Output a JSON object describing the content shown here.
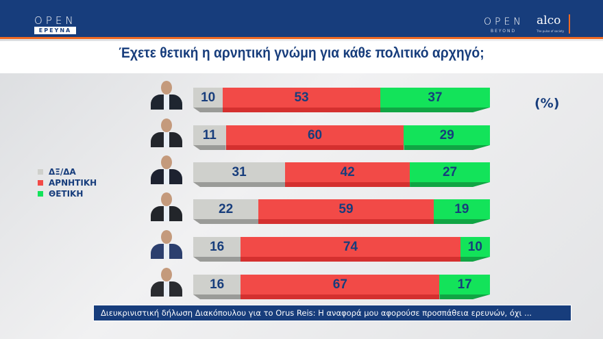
{
  "header": {
    "logo_left": "OPEN",
    "logo_left_sub": "ΕΡΕΥΝΑ",
    "logo_right": "OPEN",
    "logo_right_sub": "BEYOND",
    "partner": "alco",
    "partner_sub": "The pulse of society"
  },
  "chart_data": {
    "type": "bar",
    "orientation": "horizontal",
    "stacked": true,
    "title": "Έχετε θετική η αρνητική γνώμη για κάθε πολιτικό αρχηγό;",
    "unit": "(%)",
    "legend_placement": "left",
    "categories": [
      "leader-1",
      "leader-2",
      "leader-3",
      "leader-4",
      "leader-5",
      "leader-6"
    ],
    "series": [
      {
        "name": "ΔΞ/ΔΑ",
        "color": "#cfd0cc",
        "values": [
          10,
          11,
          31,
          22,
          16,
          16
        ]
      },
      {
        "name": "ΑΡΝΗΤΙΚΗ",
        "color": "#f24a47",
        "values": [
          53,
          60,
          42,
          59,
          74,
          67
        ]
      },
      {
        "name": "ΘΕΤΙΚΗ",
        "color": "#13e35a",
        "values": [
          37,
          29,
          27,
          19,
          10,
          17
        ]
      }
    ],
    "xlim": [
      0,
      100
    ]
  },
  "ticker": {
    "text": "Διευκρινιστική δήλωση Διακόπουλου για το Orus Reis: Η αναφορά μου αφορούσε προσπάθεια ερευνών, όχι ..."
  }
}
